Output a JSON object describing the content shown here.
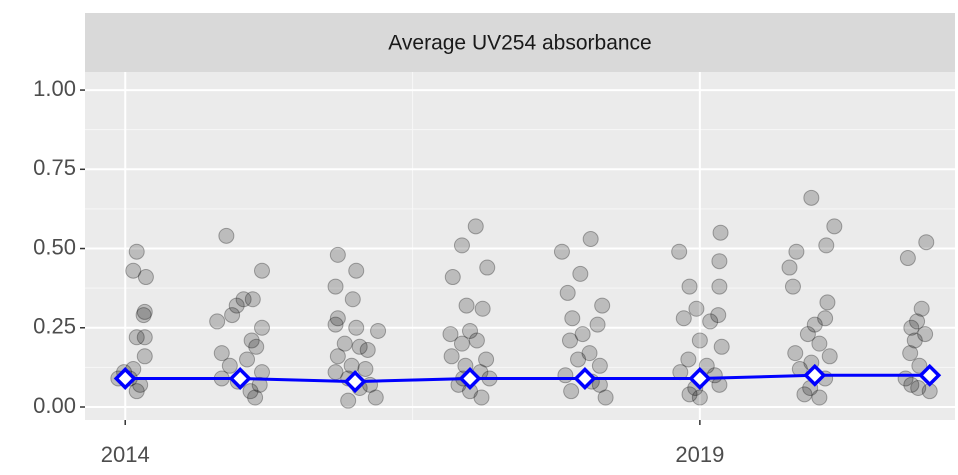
{
  "chart_data": {
    "type": "scatter",
    "title": "Average UV254 absorbance",
    "xlim": [
      2013.65,
      2021.22
    ],
    "ylim": [
      -0.041,
      1.057
    ],
    "xticks": [
      2014,
      2019
    ],
    "yticks": [
      {
        "value": 0,
        "label": "0.00"
      },
      0.25,
      {
        "value": 0.5,
        "label": "0.50"
      },
      0.75,
      {
        "value": 1,
        "label": "1.00"
      }
    ],
    "xminor": [
      2016.5
    ],
    "yminor": [
      0.125,
      0.375,
      0.625,
      0.875
    ],
    "grid": true,
    "series": [
      {
        "kind": "points",
        "color": "#000000",
        "opacity": 0.2,
        "x": [
          2014.1,
          2014.07,
          2014.18,
          2014.17,
          2014.16,
          2014.1,
          2014.17,
          2014.17,
          2014.07,
          2013.99,
          2014.04,
          2014.13,
          2014.1,
          2013.94,
          2014.88,
          2015.19,
          2015.03,
          2015.11,
          2014.97,
          2014.8,
          2014.93,
          2015.19,
          2015.1,
          2015.14,
          2014.84,
          2015.06,
          2014.91,
          2015.19,
          2014.98,
          2015.09,
          2015.13,
          2014.84,
          2015.17,
          2015.85,
          2016.01,
          2015.83,
          2015.98,
          2015.85,
          2015.83,
          2016.01,
          2016.2,
          2015.91,
          2016.04,
          2016.11,
          2015.85,
          2015.97,
          2016.09,
          2015.83,
          2015.94,
          2016.04,
          2015.94,
          2016.18,
          2016.13,
          2017.05,
          2016.93,
          2017.15,
          2016.85,
          2016.97,
          2016.83,
          2017.11,
          2017.0,
          2017.06,
          2016.93,
          2016.84,
          2017.14,
          2016.96,
          2017.09,
          2016.9,
          2017.17,
          2017.0,
          2017.1,
          2016.94,
          2017.8,
          2018.05,
          2017.96,
          2017.85,
          2017.89,
          2018.11,
          2018.15,
          2017.98,
          2017.87,
          2018.04,
          2017.94,
          2018.13,
          2017.83,
          2018.06,
          2017.88,
          2018.18,
          2018.13,
          2018.82,
          2019.18,
          2019.17,
          2018.91,
          2019.17,
          2018.97,
          2018.86,
          2019.16,
          2019.09,
          2019.0,
          2019.19,
          2018.9,
          2019.06,
          2018.83,
          2019.13,
          2018.96,
          2019.17,
          2019.0,
          2018.91,
          2019.97,
          2020.17,
          2020.1,
          2019.84,
          2019.78,
          2019.81,
          2020.11,
          2020.09,
          2020.0,
          2019.94,
          2020.04,
          2019.83,
          2020.13,
          2019.97,
          2019.87,
          2020.09,
          2019.96,
          2020.04,
          2019.91,
          2020.97,
          2020.81,
          2020.93,
          2020.89,
          2020.84,
          2020.96,
          2020.87,
          2020.83,
          2020.91,
          2020.79,
          2020.9,
          2021.0,
          2020.84
        ],
        "values": [
          0.49,
          0.43,
          0.41,
          0.3,
          0.29,
          0.22,
          0.22,
          0.16,
          0.12,
          0.11,
          0.09,
          0.07,
          0.05,
          0.09,
          0.54,
          0.43,
          0.34,
          0.34,
          0.32,
          0.27,
          0.29,
          0.25,
          0.21,
          0.19,
          0.17,
          0.15,
          0.13,
          0.11,
          0.08,
          0.05,
          0.03,
          0.09,
          0.07,
          0.48,
          0.43,
          0.38,
          0.34,
          0.28,
          0.26,
          0.25,
          0.24,
          0.2,
          0.19,
          0.18,
          0.16,
          0.13,
          0.12,
          0.11,
          0.09,
          0.06,
          0.02,
          0.03,
          0.07,
          0.57,
          0.51,
          0.44,
          0.41,
          0.32,
          0.23,
          0.31,
          0.24,
          0.21,
          0.2,
          0.16,
          0.15,
          0.13,
          0.11,
          0.07,
          0.09,
          0.05,
          0.03,
          0.09,
          0.49,
          0.53,
          0.42,
          0.36,
          0.28,
          0.26,
          0.32,
          0.23,
          0.21,
          0.17,
          0.15,
          0.13,
          0.1,
          0.08,
          0.05,
          0.03,
          0.07,
          0.49,
          0.55,
          0.46,
          0.38,
          0.38,
          0.31,
          0.28,
          0.29,
          0.27,
          0.21,
          0.19,
          0.15,
          0.13,
          0.11,
          0.1,
          0.06,
          0.07,
          0.03,
          0.04,
          0.66,
          0.57,
          0.51,
          0.49,
          0.44,
          0.38,
          0.33,
          0.28,
          0.26,
          0.23,
          0.2,
          0.17,
          0.16,
          0.14,
          0.12,
          0.09,
          0.06,
          0.03,
          0.04,
          0.52,
          0.47,
          0.31,
          0.27,
          0.25,
          0.23,
          0.21,
          0.17,
          0.13,
          0.09,
          0.06,
          0.05,
          0.07
        ]
      },
      {
        "kind": "line",
        "color": "#0000ff",
        "x": [
          2014,
          2015,
          2016,
          2017,
          2018,
          2019,
          2020,
          2021
        ],
        "values": [
          0.09,
          0.09,
          0.08,
          0.09,
          0.09,
          0.09,
          0.1,
          0.1
        ]
      }
    ]
  }
}
